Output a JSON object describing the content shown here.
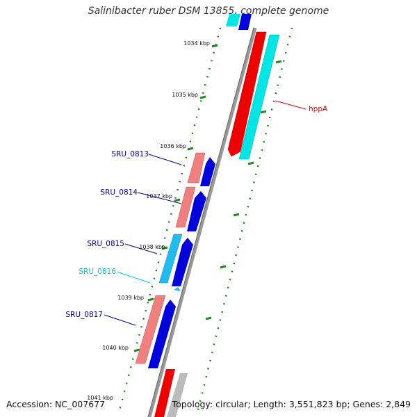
{
  "title": "Salinibacter ruber DSM 13855, complete genome",
  "footer": {
    "accession": "Accession: NC_007677",
    "summary": "Topology: circular; Length: 3,551,823 bp; Genes: 2,849"
  },
  "ticks": [
    {
      "label": "1034 kbp"
    },
    {
      "label": "1035 kbp"
    },
    {
      "label": "1036 kbp"
    },
    {
      "label": "1037 kbp"
    },
    {
      "label": "1038 kbp"
    },
    {
      "label": "1039 kbp"
    },
    {
      "label": "1040 kbp"
    },
    {
      "label": "1041 kbp"
    }
  ],
  "genes": [
    {
      "name": "hppA",
      "color": "#dd0000"
    },
    {
      "name": "SRU_0813",
      "color": "#000099"
    },
    {
      "name": "SRU_0814",
      "color": "#000099"
    },
    {
      "name": "SRU_0815",
      "color": "#000099"
    },
    {
      "name": "SRU_0816",
      "color": "#00c8d8"
    },
    {
      "name": "SRU_0817",
      "color": "#000099"
    }
  ],
  "colors": {
    "cds_forward": "#0000dd",
    "cds_reverse": "#ee0000",
    "cds_reverse_light": "#f08080",
    "cds_cyan": "#00e6e6",
    "backbone": "#888888",
    "ticks": "#228822"
  }
}
